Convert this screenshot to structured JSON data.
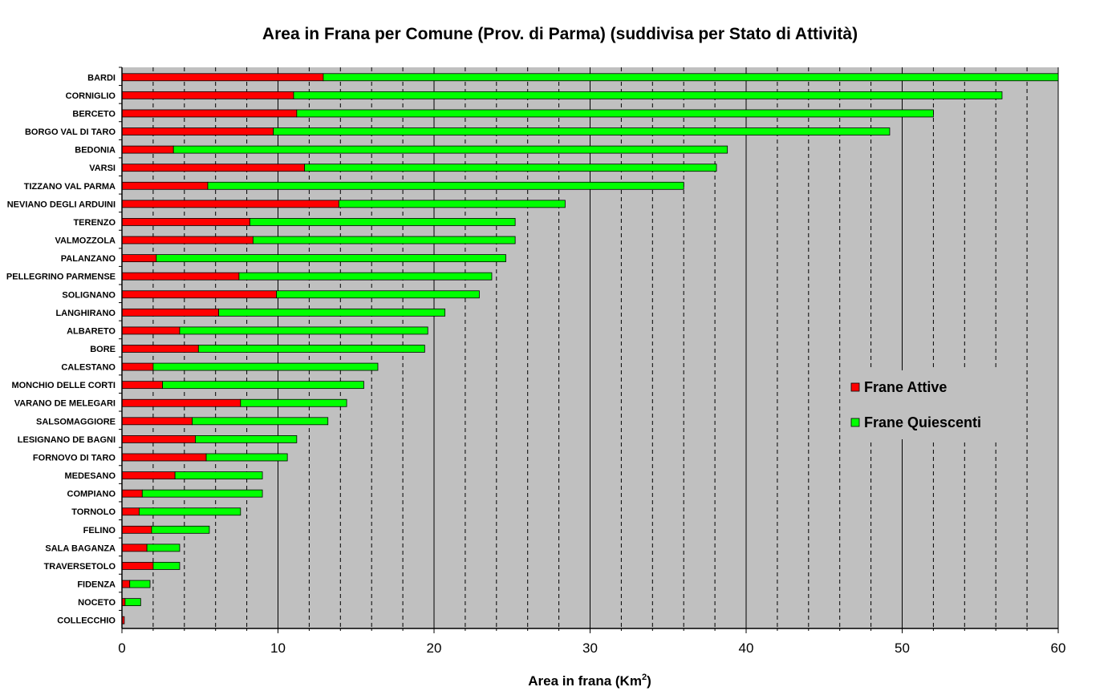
{
  "chart_data": {
    "type": "bar",
    "orientation": "horizontal",
    "stacked": true,
    "title": "Area in Frana per Comune (Prov. di Parma) (suddivisa per Stato di Attività)",
    "xlabel": "Area in frana (Km",
    "xlabel_sup": "2",
    "xlabel_end": ")",
    "ylabel": "",
    "xlim": [
      0,
      60
    ],
    "major_ticks": [
      0,
      10,
      20,
      30,
      40,
      50,
      60
    ],
    "minor_step": 2,
    "grid": true,
    "legend_position": "right",
    "categories": [
      "BARDI",
      "CORNIGLIO",
      "BERCETO",
      "BORGO VAL DI TARO",
      "BEDONIA",
      "VARSI",
      "TIZZANO VAL PARMA",
      "NEVIANO DEGLI ARDUINI",
      "TERENZO",
      "VALMOZZOLA",
      "PALANZANO",
      "PELLEGRINO PARMENSE",
      "SOLIGNANO",
      "LANGHIRANO",
      "ALBARETO",
      "BORE",
      "CALESTANO",
      "MONCHIO DELLE CORTI",
      "VARANO DE MELEGARI",
      "SALSOMAGGIORE",
      "LESIGNANO DE BAGNI",
      "FORNOVO DI TARO",
      "MEDESANO",
      "COMPIANO",
      "TORNOLO",
      "FELINO",
      "SALA BAGANZA",
      "TRAVERSETOLO",
      "FIDENZA",
      "NOCETO",
      "COLLECCHIO"
    ],
    "series": [
      {
        "name": "Frane Attive",
        "color": "#ff0000",
        "values": [
          12.9,
          11.0,
          11.2,
          9.7,
          3.3,
          11.7,
          5.5,
          13.9,
          8.2,
          8.4,
          2.2,
          7.5,
          9.9,
          6.2,
          3.7,
          4.9,
          2.0,
          2.6,
          7.6,
          4.5,
          4.7,
          5.4,
          3.4,
          1.3,
          1.1,
          1.9,
          1.6,
          2.0,
          0.5,
          0.2,
          0.15
        ]
      },
      {
        "name": "Frane Quiescenti",
        "color": "#00ff00",
        "values": [
          47.1,
          45.4,
          40.8,
          39.5,
          35.5,
          26.4,
          30.5,
          14.5,
          17.0,
          16.8,
          22.4,
          16.2,
          13.0,
          14.5,
          15.9,
          14.5,
          14.4,
          12.9,
          6.8,
          8.7,
          6.5,
          5.2,
          5.6,
          7.7,
          6.5,
          3.7,
          2.1,
          1.7,
          1.3,
          1.0,
          0.0
        ]
      }
    ]
  }
}
